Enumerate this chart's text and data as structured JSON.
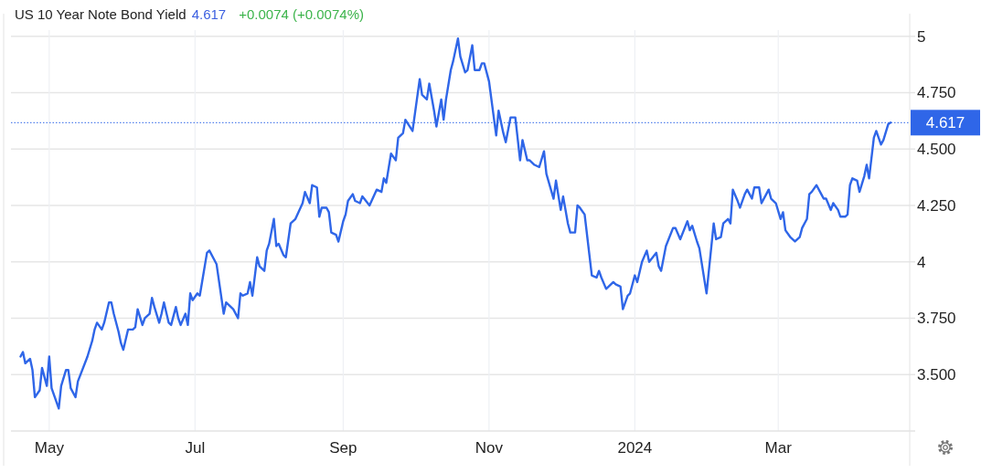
{
  "chart_data": {
    "type": "line",
    "title": "US 10 Year Note Bond Yield",
    "subtitle": "4.617",
    "annotations": [
      "+0.0074 (+0.0074%)"
    ],
    "x": [
      "2023-04-19",
      "2023-04-20",
      "2023-04-21",
      "2023-04-23",
      "2023-04-24",
      "2023-04-25",
      "2023-04-27",
      "2023-04-28",
      "2023-04-30",
      "2023-05-01",
      "2023-05-02",
      "2023-05-05",
      "2023-05-06",
      "2023-05-08",
      "2023-05-09",
      "2023-05-10",
      "2023-05-12",
      "2023-05-13",
      "2023-05-17",
      "2023-05-19",
      "2023-05-20",
      "2023-05-21",
      "2023-05-23",
      "2023-05-24",
      "2023-05-26",
      "2023-05-27",
      "2023-05-28",
      "2023-05-30",
      "2023-05-31",
      "2023-06-01",
      "2023-06-03",
      "2023-06-05",
      "2023-06-06",
      "2023-06-07",
      "2023-06-09",
      "2023-06-10",
      "2023-06-12",
      "2023-06-13",
      "2023-06-14",
      "2023-06-16",
      "2023-06-17",
      "2023-06-18",
      "2023-06-20",
      "2023-06-21",
      "2023-06-23",
      "2023-06-24",
      "2023-06-25",
      "2023-06-27",
      "2023-06-28",
      "2023-06-29",
      "2023-06-30",
      "2023-07-02",
      "2023-07-03",
      "2023-07-06",
      "2023-07-07",
      "2023-07-09",
      "2023-07-10",
      "2023-07-13",
      "2023-07-14",
      "2023-07-16",
      "2023-07-17",
      "2023-07-19",
      "2023-07-20",
      "2023-07-21",
      "2023-07-23",
      "2023-07-24",
      "2023-07-25",
      "2023-07-27",
      "2023-07-28",
      "2023-07-30",
      "2023-07-31",
      "2023-08-01",
      "2023-08-03",
      "2023-08-04",
      "2023-08-05",
      "2023-08-07",
      "2023-08-08",
      "2023-08-10",
      "2023-08-12",
      "2023-08-15",
      "2023-08-16",
      "2023-08-18",
      "2023-08-19",
      "2023-08-21",
      "2023-08-22",
      "2023-08-23",
      "2023-08-25",
      "2023-08-26",
      "2023-08-27",
      "2023-08-29",
      "2023-08-30",
      "2023-09-01",
      "2023-09-02",
      "2023-09-03",
      "2023-09-05",
      "2023-09-06",
      "2023-09-08",
      "2023-09-09",
      "2023-09-12",
      "2023-09-15",
      "2023-09-17",
      "2023-09-18",
      "2023-09-19",
      "2023-09-21",
      "2023-09-23",
      "2023-09-24",
      "2023-09-26",
      "2023-09-27",
      "2023-09-30",
      "2023-10-03",
      "2023-10-04",
      "2023-10-06",
      "2023-10-07",
      "2023-10-09",
      "2023-10-10",
      "2023-10-12",
      "2023-10-13",
      "2023-10-14",
      "2023-10-16",
      "2023-10-17",
      "2023-10-19",
      "2023-10-20",
      "2023-10-22",
      "2023-10-23",
      "2023-10-25",
      "2023-10-26",
      "2023-10-28",
      "2023-10-29",
      "2023-10-30",
      "2023-11-01",
      "2023-11-04",
      "2023-11-05",
      "2023-11-07",
      "2023-11-08",
      "2023-11-10",
      "2023-11-12",
      "2023-11-14",
      "2023-11-15",
      "2023-11-17",
      "2023-11-18",
      "2023-11-20",
      "2023-11-22",
      "2023-11-24",
      "2023-11-25",
      "2023-11-28",
      "2023-11-29",
      "2023-12-01",
      "2023-12-02",
      "2023-12-04",
      "2023-12-05",
      "2023-12-07",
      "2023-12-08",
      "2023-12-09",
      "2023-12-11",
      "2023-12-13",
      "2023-12-14",
      "2023-12-16",
      "2023-12-17",
      "2023-12-18",
      "2023-12-20",
      "2023-12-23",
      "2023-12-24",
      "2023-12-26",
      "2023-12-27",
      "2023-12-29",
      "2023-12-30",
      "2024-01-01",
      "2024-01-02",
      "2024-01-04",
      "2024-01-06",
      "2024-01-07",
      "2024-01-10",
      "2024-01-11",
      "2024-01-12",
      "2024-01-14",
      "2024-01-17",
      "2024-01-18",
      "2024-01-20",
      "2024-01-23",
      "2024-01-24",
      "2024-01-25",
      "2024-01-27",
      "2024-01-28",
      "2024-01-31",
      "2024-02-03",
      "2024-02-04",
      "2024-02-06",
      "2024-02-07",
      "2024-02-09",
      "2024-02-10",
      "2024-02-11",
      "2024-02-13",
      "2024-02-14",
      "2024-02-16",
      "2024-02-17",
      "2024-02-19",
      "2024-02-20",
      "2024-02-22",
      "2024-02-23",
      "2024-02-25",
      "2024-02-26",
      "2024-02-27",
      "2024-02-29",
      "2024-03-02",
      "2024-03-03",
      "2024-03-04",
      "2024-03-06",
      "2024-03-08",
      "2024-03-10",
      "2024-03-11",
      "2024-03-13",
      "2024-03-14",
      "2024-03-15",
      "2024-03-17",
      "2024-03-19",
      "2024-03-20",
      "2024-03-21",
      "2024-03-23",
      "2024-03-24",
      "2024-03-26",
      "2024-03-27",
      "2024-03-29",
      "2024-03-30",
      "2024-03-31",
      "2024-04-01",
      "2024-04-03",
      "2024-04-04",
      "2024-04-06",
      "2024-04-07",
      "2024-04-08",
      "2024-04-10",
      "2024-04-11",
      "2024-04-13",
      "2024-04-14",
      "2024-04-16",
      "2024-04-17"
    ],
    "series": [
      {
        "color": "#2f66e8",
        "values": [
          3.58,
          3.6,
          3.55,
          3.57,
          3.52,
          3.4,
          3.43,
          3.53,
          3.45,
          3.58,
          3.44,
          3.35,
          3.45,
          3.52,
          3.52,
          3.44,
          3.4,
          3.47,
          3.58,
          3.65,
          3.7,
          3.73,
          3.7,
          3.73,
          3.82,
          3.82,
          3.77,
          3.69,
          3.64,
          3.61,
          3.7,
          3.7,
          3.71,
          3.79,
          3.72,
          3.75,
          3.77,
          3.84,
          3.8,
          3.73,
          3.77,
          3.82,
          3.73,
          3.72,
          3.8,
          3.75,
          3.72,
          3.77,
          3.72,
          3.86,
          3.83,
          3.86,
          3.85,
          4.04,
          4.05,
          4.01,
          3.99,
          3.77,
          3.82,
          3.8,
          3.79,
          3.75,
          3.86,
          3.85,
          3.86,
          3.91,
          3.85,
          4.02,
          3.98,
          3.96,
          4.05,
          4.08,
          4.19,
          4.07,
          4.08,
          4.03,
          4.02,
          4.17,
          4.19,
          4.26,
          4.31,
          4.26,
          4.34,
          4.33,
          4.2,
          4.24,
          4.24,
          4.22,
          4.13,
          4.12,
          4.09,
          4.18,
          4.21,
          4.27,
          4.3,
          4.27,
          4.26,
          4.29,
          4.25,
          4.32,
          4.31,
          4.37,
          4.35,
          4.48,
          4.45,
          4.55,
          4.57,
          4.63,
          4.58,
          4.81,
          4.74,
          4.72,
          4.79,
          4.67,
          4.6,
          4.72,
          4.63,
          4.72,
          4.85,
          4.89,
          4.99,
          4.91,
          4.84,
          4.85,
          4.96,
          4.85,
          4.85,
          4.88,
          4.88,
          4.8,
          4.56,
          4.67,
          4.57,
          4.53,
          4.64,
          4.64,
          4.45,
          4.54,
          4.45,
          4.45,
          4.43,
          4.42,
          4.49,
          4.39,
          4.28,
          4.36,
          4.23,
          4.29,
          4.17,
          4.13,
          4.13,
          4.25,
          4.24,
          4.21,
          4.03,
          3.94,
          3.93,
          3.96,
          3.93,
          3.88,
          3.91,
          3.9,
          3.89,
          3.79,
          3.85,
          3.86,
          3.94,
          3.91,
          4.0,
          4.05,
          4.0,
          4.04,
          3.98,
          3.96,
          4.07,
          4.15,
          4.15,
          4.1,
          4.18,
          4.14,
          4.16,
          4.09,
          4.06,
          3.86,
          4.17,
          4.1,
          4.11,
          4.17,
          4.19,
          4.17,
          4.32,
          4.27,
          4.24,
          4.3,
          4.32,
          4.28,
          4.33,
          4.33,
          4.26,
          4.3,
          4.32,
          4.28,
          4.26,
          4.19,
          4.22,
          4.14,
          4.11,
          4.09,
          4.11,
          4.15,
          4.19,
          4.3,
          4.31,
          4.34,
          4.3,
          4.28,
          4.28,
          4.23,
          4.26,
          4.23,
          4.2,
          4.2,
          4.21,
          4.34,
          4.37,
          4.36,
          4.31,
          4.38,
          4.43,
          4.37,
          4.55,
          4.58,
          4.52,
          4.54,
          4.61,
          4.617
        ]
      }
    ],
    "xlim": [
      "2023-04-15",
      "2024-04-25"
    ],
    "xticks": [
      {
        "value": "2023-05-01",
        "label": "May"
      },
      {
        "value": "2023-07-01",
        "label": "Jul"
      },
      {
        "value": "2023-09-01",
        "label": "Sep"
      },
      {
        "value": "2023-11-01",
        "label": "Nov"
      },
      {
        "value": "2024-01-01",
        "label": "2024"
      },
      {
        "value": "2024-03-01",
        "label": "Mar"
      }
    ],
    "ylim": [
      3.25,
      5.1
    ],
    "yticks": [
      {
        "value": 3.5,
        "label": "3.500"
      },
      {
        "value": 3.75,
        "label": "3.750"
      },
      4,
      {
        "value": 4.25,
        "label": "4.250"
      },
      {
        "value": 4.5,
        "label": "4.500"
      },
      {
        "value": 4.75,
        "label": "4.750"
      },
      5
    ],
    "grid": true,
    "line_style": "solid",
    "marker": "none",
    "ref_lines": [
      {
        "axis": "y",
        "value": 4.617,
        "label": "4.617",
        "color": "#2f66e8",
        "line_style": "dotted"
      }
    ]
  }
}
